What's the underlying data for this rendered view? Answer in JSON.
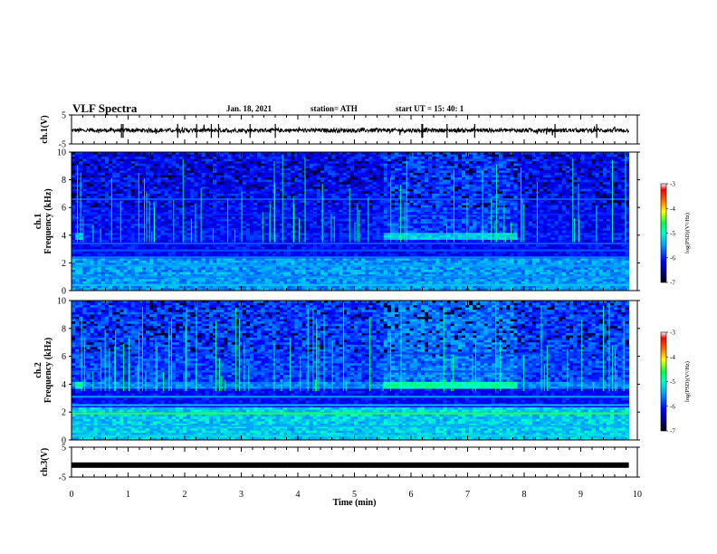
{
  "header": {
    "title": "VLF Spectra",
    "date": "Jan. 18, 2021",
    "station": "station= ATH",
    "start": "start  UT =   15: 40: 1"
  },
  "chart_data": [
    {
      "type": "line",
      "panel": "ch1-waveform",
      "ylabel": "ch.1(V)",
      "ylim": [
        -5,
        5
      ],
      "y_ticks": [
        "5",
        "-5"
      ],
      "x_range": [
        0,
        10
      ],
      "data_extent": [
        0,
        9.85
      ],
      "baseline": -0.3,
      "noise_amplitude": 0.7,
      "color": "#000000"
    },
    {
      "type": "heatmap",
      "panel": "ch1-spectrogram",
      "ylabel_lines": [
        "ch.1",
        "Frequency (kHz)"
      ],
      "ylim": [
        0,
        10
      ],
      "y_ticks": [
        "0",
        "2",
        "4",
        "6",
        "8",
        "10"
      ],
      "x_range": [
        0,
        10
      ],
      "data_extent": [
        0,
        9.85
      ],
      "colorbar": {
        "label": "log(PSD)(V²/Hz)",
        "range": [
          -7,
          -3
        ],
        "ticks": [
          "-3",
          "-4",
          "-5",
          "-6",
          "-7"
        ]
      }
    },
    {
      "type": "heatmap",
      "panel": "ch2-spectrogram",
      "ylabel_lines": [
        "ch.2",
        "Frequency (kHz)"
      ],
      "ylim": [
        0,
        10
      ],
      "y_ticks": [
        "0",
        "2",
        "4",
        "6",
        "8",
        "10"
      ],
      "x_range": [
        0,
        10
      ],
      "data_extent": [
        0,
        9.85
      ],
      "colorbar": {
        "label": "log(PSD)(V²/Hz)",
        "range": [
          -7,
          -3
        ],
        "ticks": [
          "-3",
          "-4",
          "-5",
          "-6",
          "-7"
        ]
      }
    },
    {
      "type": "line",
      "panel": "ch3-waveform",
      "ylabel": "ch.3(V)",
      "ylim": [
        -5,
        5
      ],
      "y_ticks": [
        "5",
        "-5"
      ],
      "x_range": [
        0,
        10
      ],
      "data_extent": [
        0,
        9.85
      ],
      "baseline": -1.0,
      "noise_amplitude": 0.05,
      "color": "#000000"
    }
  ],
  "x_axis": {
    "label": "Time (min)",
    "ticks": [
      "0",
      "1",
      "2",
      "3",
      "4",
      "5",
      "6",
      "7",
      "8",
      "9",
      "10"
    ]
  },
  "colors": {
    "background": "#ffffff",
    "axis": "#000000",
    "colormap": [
      "#000040",
      "#0000b0",
      "#0060ff",
      "#00d0ff",
      "#00ff80",
      "#ffff00",
      "#ff6000",
      "#ff0000",
      "#ffffff"
    ]
  }
}
